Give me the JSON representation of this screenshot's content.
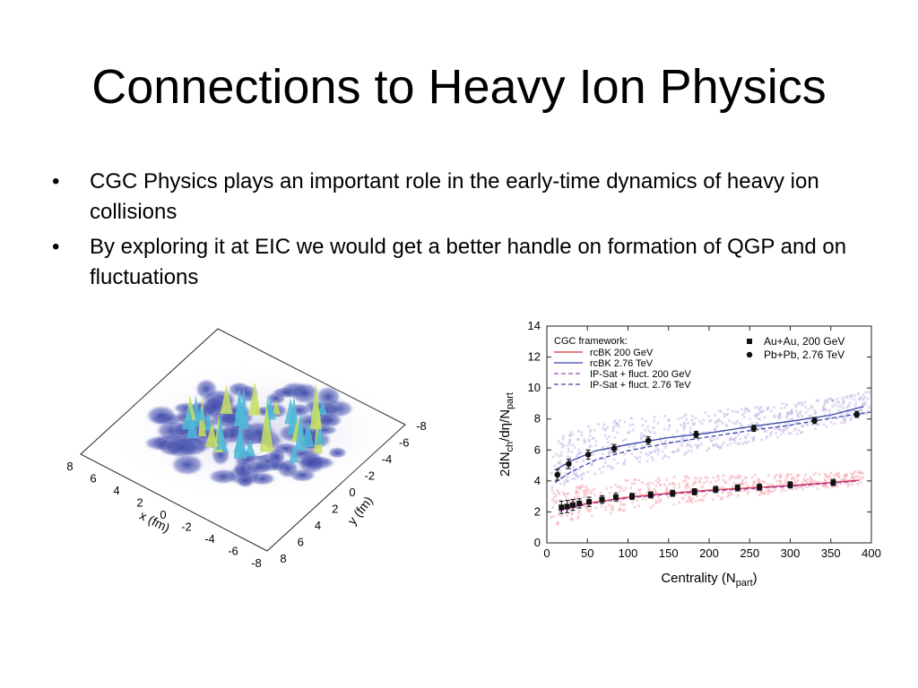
{
  "slide": {
    "title": "Connections to Heavy Ion Physics",
    "bullets": [
      "CGC Physics plays an important role in the early-time dynamics of heavy ion collisions",
      "By exploring it at EIC we would get a better handle on formation of QGP and on fluctuations"
    ],
    "bullet_glyph": "•"
  },
  "left_figure": {
    "x_axis_label": "x (fm)",
    "y_axis_label": "y (fm)",
    "x_ticks": [
      "8",
      "6",
      "4",
      "2",
      "0",
      "-2",
      "-4",
      "-6",
      "-8"
    ],
    "y_ticks": [
      "8",
      "6",
      "4",
      "2",
      "0",
      "-2",
      "-4",
      "-6",
      "-8"
    ],
    "colors": {
      "low": "#3d4aa8",
      "mid": "#4fb8d8",
      "high": "#c8e060"
    }
  },
  "chart_data": {
    "type": "scatter",
    "xlabel": "Centrality (N",
    "xlabel_sub": "part",
    "xlabel_tail": ")",
    "ylabel_parts": [
      "2dN",
      "ch",
      "/dη/N",
      "part"
    ],
    "xlim": [
      0,
      400
    ],
    "ylim": [
      0,
      14
    ],
    "x_ticks": [
      0,
      50,
      100,
      150,
      200,
      250,
      300,
      350,
      400
    ],
    "y_ticks": [
      0,
      2,
      4,
      6,
      8,
      10,
      12,
      14
    ],
    "legend_title": "CGC framework:",
    "legend_placement": "top-left",
    "series": [
      {
        "name": "rcBK 200 GeV",
        "style": "solid",
        "color": "#e0303a",
        "x": [
          15,
          50,
          100,
          150,
          200,
          250,
          300,
          350,
          385
        ],
        "y": [
          2.1,
          2.55,
          2.95,
          3.2,
          3.4,
          3.55,
          3.7,
          3.9,
          4.05
        ]
      },
      {
        "name": "rcBK 2.76 TeV",
        "style": "solid",
        "color": "#3848a8",
        "x": [
          10,
          30,
          60,
          100,
          150,
          200,
          250,
          300,
          350,
          390
        ],
        "y": [
          4.7,
          5.3,
          5.95,
          6.35,
          6.8,
          7.1,
          7.5,
          7.85,
          8.25,
          8.8
        ]
      },
      {
        "name": "IP-Sat + fluct. 200 GeV",
        "style": "dashed",
        "color": "#9a44b8",
        "x": [
          15,
          50,
          100,
          150,
          200,
          250,
          300,
          350,
          385
        ],
        "y": [
          2.05,
          2.5,
          2.9,
          3.15,
          3.35,
          3.5,
          3.65,
          3.85,
          4.0
        ]
      },
      {
        "name": "IP-Sat + fluct. 2.76 TeV",
        "style": "dashed",
        "color": "#3848a8",
        "x": [
          10,
          30,
          60,
          100,
          150,
          200,
          250,
          300,
          350,
          400
        ],
        "y": [
          3.9,
          4.6,
          5.35,
          5.95,
          6.45,
          6.85,
          7.25,
          7.6,
          8.05,
          8.45
        ]
      }
    ],
    "data_series": [
      {
        "name": "Au+Au, 200 GeV",
        "marker": "square",
        "x": [
          18,
          25,
          32,
          40,
          52,
          68,
          85,
          105,
          128,
          155,
          182,
          208,
          235,
          262,
          300,
          353
        ],
        "y": [
          2.3,
          2.35,
          2.45,
          2.55,
          2.65,
          2.8,
          2.95,
          3.0,
          3.1,
          3.2,
          3.3,
          3.45,
          3.55,
          3.6,
          3.75,
          3.9
        ],
        "err": [
          0.4,
          0.4,
          0.35,
          0.3,
          0.3,
          0.25,
          0.25,
          0.2,
          0.2,
          0.2,
          0.2,
          0.2,
          0.2,
          0.2,
          0.2,
          0.2
        ]
      },
      {
        "name": "Pb+Pb, 2.76 TeV",
        "marker": "circle",
        "x": [
          13,
          27,
          51,
          83,
          125,
          184,
          255,
          330,
          382
        ],
        "y": [
          4.4,
          5.1,
          5.7,
          6.1,
          6.6,
          7.0,
          7.4,
          7.9,
          8.3
        ],
        "err": [
          0.35,
          0.3,
          0.3,
          0.25,
          0.25,
          0.2,
          0.2,
          0.2,
          0.2
        ]
      }
    ],
    "band_colors": {
      "200GeV": "#f4a8b4",
      "2.76TeV": "#c4b4e4"
    }
  }
}
